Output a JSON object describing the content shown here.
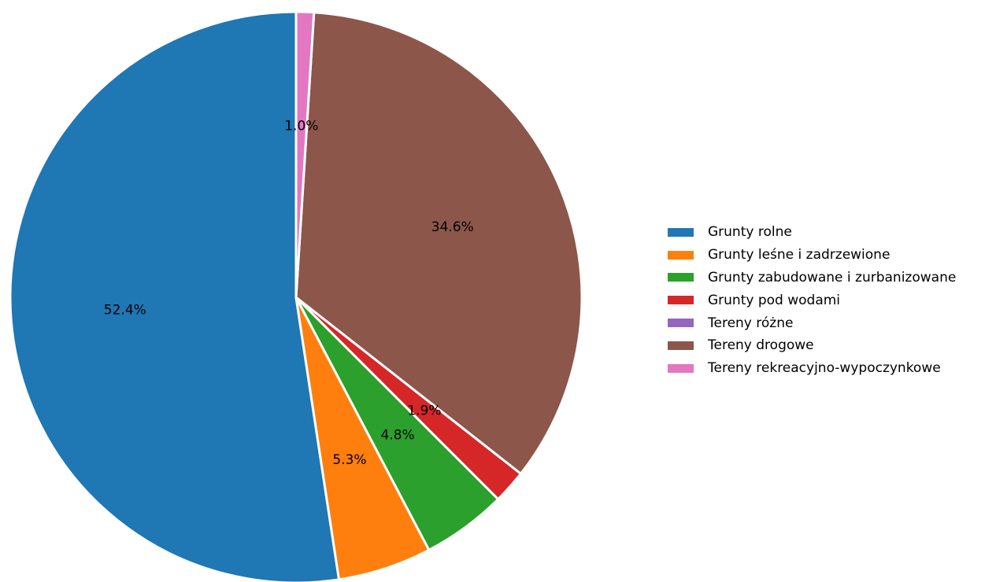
{
  "chart_data": {
    "type": "pie",
    "title": "",
    "start_angle_deg": 90,
    "direction": "counterclockwise",
    "label_format": "percent_one_decimal",
    "legend_position": "right",
    "slices": [
      {
        "label": "Grunty rolne",
        "value": 52.4,
        "display": "52.4%",
        "color": "#1f77b4"
      },
      {
        "label": "Grunty leśne i zadrzewione",
        "value": 5.3,
        "display": "5.3%",
        "color": "#ff7f0e"
      },
      {
        "label": "Grunty zabudowane i zurbanizowane",
        "value": 4.8,
        "display": "4.8%",
        "color": "#2ca02c"
      },
      {
        "label": "Grunty pod wodami",
        "value": 1.9,
        "display": "1.9%",
        "color": "#d62728"
      },
      {
        "label": "Tereny różne",
        "value": 0.0,
        "display": "",
        "color": "#9467bd"
      },
      {
        "label": "Tereny drogowe",
        "value": 34.6,
        "display": "34.6%",
        "color": "#8c564b"
      },
      {
        "label": "Tereny rekreacyjno-wypoczynkowe",
        "value": 1.0,
        "display": "1.0%",
        "color": "#e377c2"
      }
    ]
  }
}
